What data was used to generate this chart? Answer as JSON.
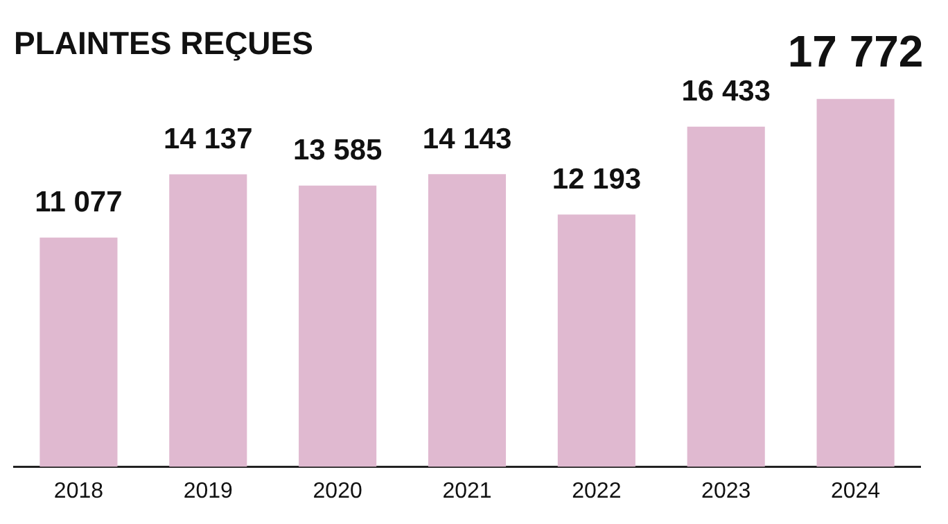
{
  "chart_data": {
    "type": "bar",
    "title": "PLAINTES REÇUES",
    "categories": [
      "2018",
      "2019",
      "2020",
      "2021",
      "2022",
      "2023",
      "2024"
    ],
    "values": [
      11077,
      14137,
      13585,
      14143,
      12193,
      16433,
      17772
    ],
    "value_labels": [
      "11 077",
      "14 137",
      "13 585",
      "14 143",
      "12 193",
      "16 433",
      "17 772"
    ],
    "color": "#e0b9d0",
    "tick_labels": "x",
    "grid": false,
    "legend": false
  }
}
